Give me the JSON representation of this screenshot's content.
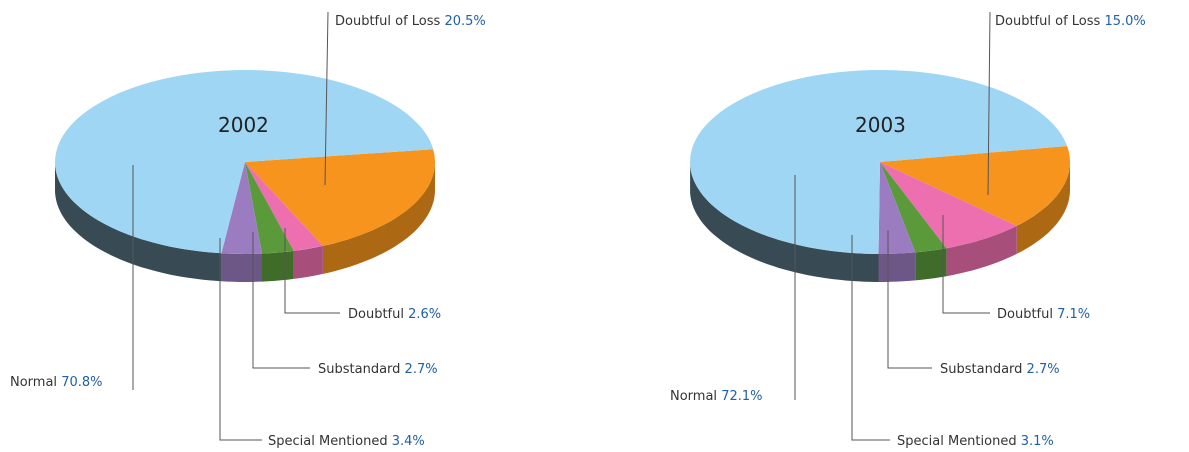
{
  "chart_data": [
    {
      "type": "pie",
      "title": "2002",
      "categories": [
        "Doubtful of Loss",
        "Doubtful",
        "Substandard",
        "Special Mentioned",
        "Normal"
      ],
      "values": [
        20.5,
        2.6,
        2.7,
        3.4,
        70.8
      ],
      "value_labels": [
        "20.5%",
        "2.6%",
        "2.7%",
        "3.4%",
        "70.8%"
      ],
      "colors": [
        "#f7941d",
        "#ee6fb0",
        "#5a9a3a",
        "#9b7cc0",
        "#9fd6f4"
      ]
    },
    {
      "type": "pie",
      "title": "2003",
      "categories": [
        "Doubtful of Loss",
        "Doubtful",
        "Substandard",
        "Special Mentioned",
        "Normal"
      ],
      "values": [
        15.0,
        7.1,
        2.7,
        3.1,
        72.1
      ],
      "value_labels": [
        "15.0%",
        "7.1%",
        "2.7%",
        "3.1%",
        "72.1%"
      ],
      "colors": [
        "#f7941d",
        "#ee6fb0",
        "#5a9a3a",
        "#9b7cc0",
        "#9fd6f4"
      ]
    }
  ]
}
